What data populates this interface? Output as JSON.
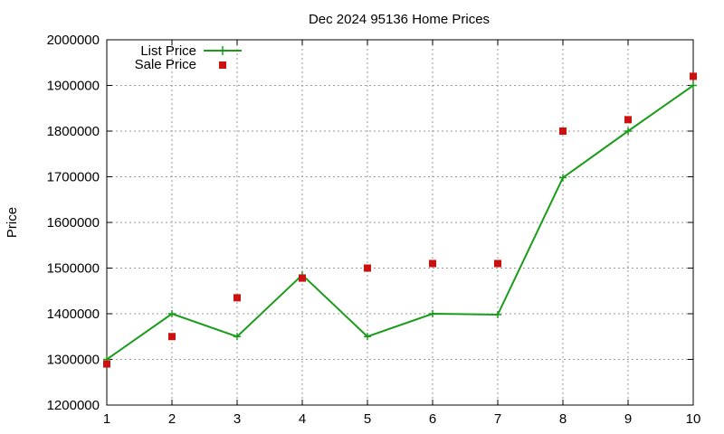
{
  "chart_data": {
    "type": "line",
    "title": "Dec 2024 95136 Home Prices",
    "xlabel": "",
    "ylabel": "Price",
    "xlim": [
      1,
      10
    ],
    "ylim": [
      1200000,
      2000000
    ],
    "x_ticks": [
      1,
      2,
      3,
      4,
      5,
      6,
      7,
      8,
      9,
      10
    ],
    "y_ticks": [
      1200000,
      1300000,
      1400000,
      1500000,
      1600000,
      1700000,
      1800000,
      1900000,
      2000000
    ],
    "grid": true,
    "legend_position": "top-left",
    "x": [
      1,
      2,
      3,
      4,
      5,
      6,
      7,
      8,
      9,
      10
    ],
    "series": [
      {
        "name": "List Price",
        "style": "line+points",
        "color": "#1a9c1a",
        "values": [
          1300000,
          1400000,
          1350000,
          1485000,
          1350000,
          1400000,
          1398000,
          1698000,
          1800000,
          1900000
        ]
      },
      {
        "name": "Sale Price",
        "style": "points",
        "color": "#cc1111",
        "values": [
          1290000,
          1350000,
          1435000,
          1478000,
          1500000,
          1510000,
          1510000,
          1800000,
          1825000,
          1920000
        ]
      }
    ]
  }
}
